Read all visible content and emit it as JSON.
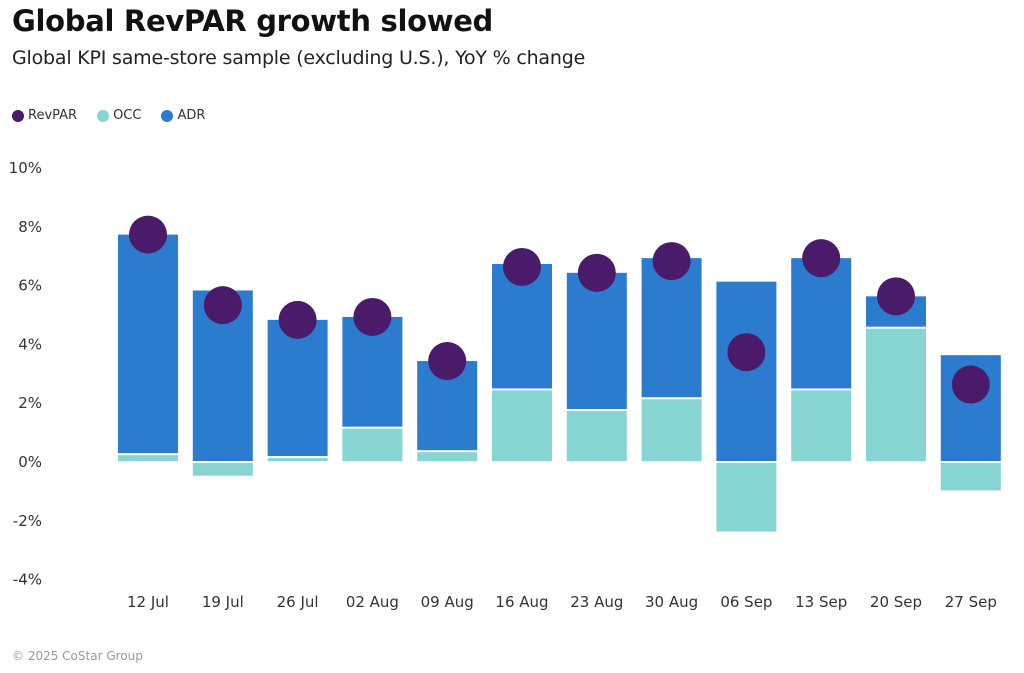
{
  "header": {
    "title": "Global RevPAR growth slowed",
    "subtitle": "Global KPI same-store sample (excluding U.S.), YoY % change"
  },
  "legend": [
    {
      "label": "RevPAR",
      "color": "#4a1a6b"
    },
    {
      "label": "OCC",
      "color": "#86d5d2"
    },
    {
      "label": "ADR",
      "color": "#2b7ccf"
    }
  ],
  "footer": "© 2025 CoStar Group",
  "chart_data": {
    "type": "bar",
    "subtype": "stacked bar with dot overlay",
    "title": "Global RevPAR growth slowed",
    "subtitle": "Global KPI same-store sample (excluding U.S.), YoY % change",
    "xlabel": "",
    "ylabel": "YoY % change",
    "ylim": [
      -4,
      10
    ],
    "yticks": [
      -4,
      -2,
      0,
      2,
      4,
      6,
      8,
      10
    ],
    "ytick_labels": [
      "-4%",
      "-2%",
      "0%",
      "2%",
      "4%",
      "6%",
      "8%",
      "10%"
    ],
    "grid": false,
    "legend_position": "top-left",
    "categories": [
      "12 Jul",
      "19 Jul",
      "26 Jul",
      "02 Aug",
      "09 Aug",
      "16 Aug",
      "23 Aug",
      "30 Aug",
      "06 Sep",
      "13 Sep",
      "20 Sep",
      "27 Sep"
    ],
    "series": [
      {
        "name": "OCC",
        "type": "bar",
        "color": "#86d5d2",
        "values": [
          0.2,
          -0.5,
          0.1,
          1.1,
          0.3,
          2.4,
          1.7,
          2.1,
          -2.4,
          2.4,
          4.5,
          -1.0
        ]
      },
      {
        "name": "ADR",
        "type": "bar",
        "color": "#2b7ccf",
        "values": [
          7.5,
          5.8,
          4.7,
          3.8,
          3.1,
          4.3,
          4.7,
          4.8,
          6.1,
          4.5,
          1.1,
          3.6
        ]
      },
      {
        "name": "RevPAR",
        "type": "dot",
        "color": "#4a1a6b",
        "values": [
          7.7,
          5.3,
          4.8,
          4.9,
          3.4,
          6.6,
          6.4,
          6.8,
          3.7,
          6.9,
          5.6,
          2.6
        ]
      }
    ]
  }
}
